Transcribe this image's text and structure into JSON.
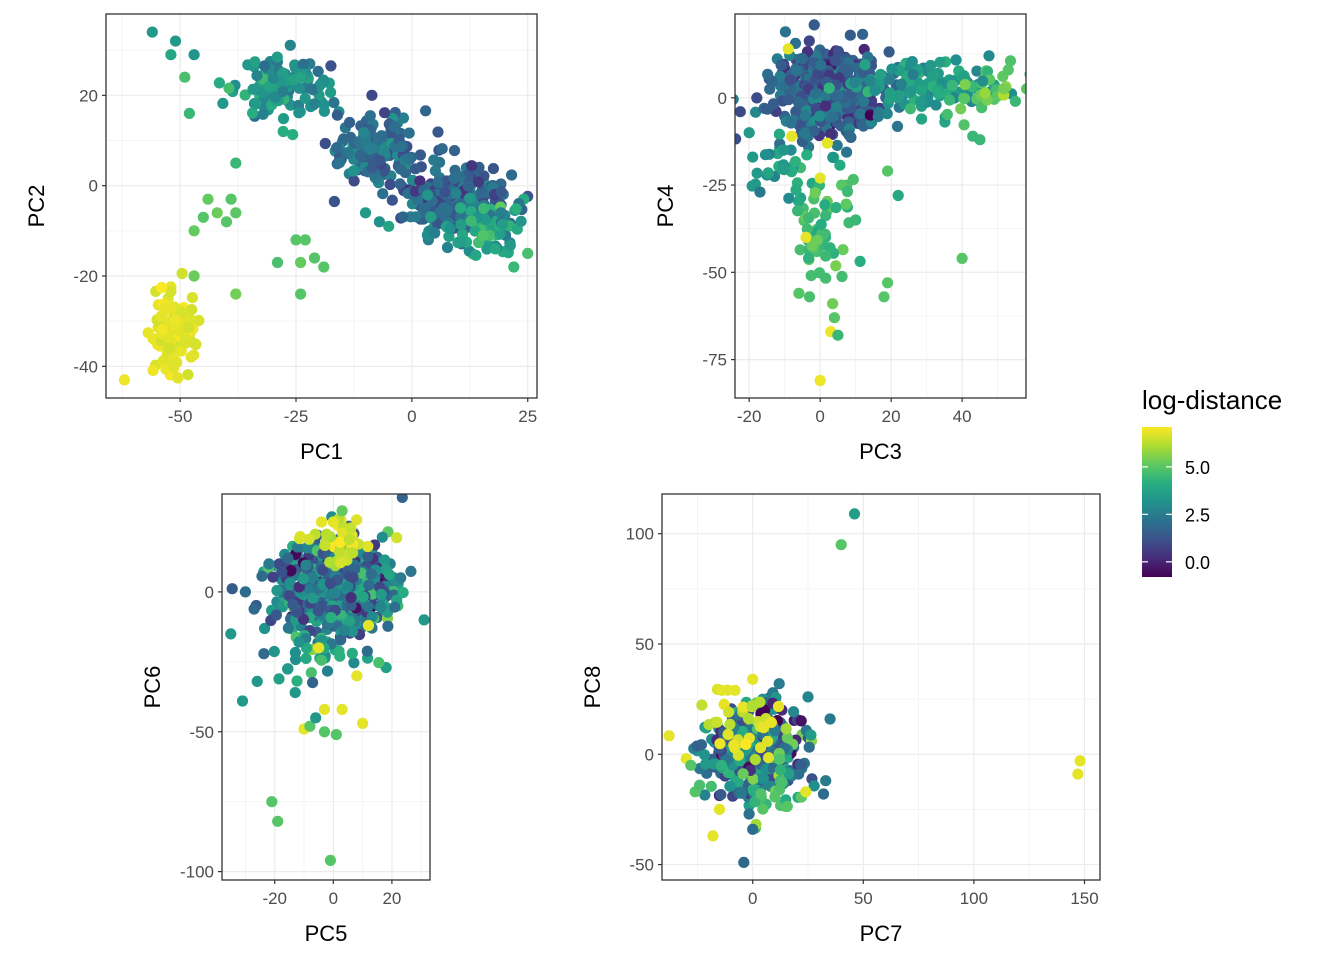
{
  "chart_data": [
    {
      "type": "scatter",
      "name": "pc1-pc2",
      "xlabel": "PC1",
      "ylabel": "PC2",
      "xlim": [
        -66,
        27
      ],
      "ylim": [
        -47,
        38
      ],
      "xticks": [
        -50,
        -25,
        0,
        25
      ],
      "yticks": [
        -40,
        -20,
        0,
        20
      ],
      "grid": true,
      "clusters": [
        {
          "cx": -28,
          "cy": 22,
          "sx": 5,
          "sy": 3.5,
          "n": 130,
          "c": 3.3,
          "cs": 0.6
        },
        {
          "cx": -8,
          "cy": 8,
          "sx": 5,
          "sy": 4,
          "n": 150,
          "c": 2.0,
          "cs": 0.6
        },
        {
          "cx": 10,
          "cy": -3,
          "sx": 6,
          "sy": 4,
          "n": 230,
          "c": 1.8,
          "cs": 0.7
        },
        {
          "cx": 16,
          "cy": -10,
          "sx": 4,
          "sy": 3,
          "n": 70,
          "c": 3.6,
          "cs": 0.7
        },
        {
          "cx": -51,
          "cy": -33,
          "sx": 2.5,
          "sy": 4,
          "n": 130,
          "c": 6.8,
          "cs": 0.15
        }
      ],
      "points": [
        [
          -56,
          34,
          3.5
        ],
        [
          -51,
          32,
          3.5
        ],
        [
          -49,
          24,
          4.8
        ],
        [
          -48,
          16,
          4.5
        ],
        [
          -38,
          5,
          4.5
        ],
        [
          -44,
          -3,
          5.2
        ],
        [
          -42,
          -6,
          5.3
        ],
        [
          -45,
          -7,
          5.0
        ],
        [
          -47,
          -10,
          5.2
        ],
        [
          -39,
          -3,
          5.0
        ],
        [
          -38,
          -6,
          5.1
        ],
        [
          -40,
          -8,
          5.0
        ],
        [
          -47,
          -20,
          5.3
        ],
        [
          -38,
          -24,
          5.4
        ],
        [
          -25,
          -12,
          5.0
        ],
        [
          -23,
          -12,
          5.0
        ],
        [
          -29,
          -17,
          4.8
        ],
        [
          -24,
          -17,
          5.2
        ],
        [
          -21,
          -16,
          5.0
        ],
        [
          -19,
          -18,
          5.0
        ],
        [
          -24,
          -24,
          5.0
        ],
        [
          -52,
          29,
          3.9
        ],
        [
          -62,
          -43,
          6.9
        ],
        [
          -47,
          29,
          3.3
        ],
        [
          22,
          -18,
          4.5
        ],
        [
          25,
          -15,
          4.8
        ],
        [
          18,
          -14,
          4.0
        ],
        [
          -10,
          -6,
          3.5
        ],
        [
          -7,
          -8,
          3.2
        ],
        [
          -5,
          -9,
          3.8
        ]
      ]
    },
    {
      "type": "scatter",
      "name": "pc3-pc4",
      "xlabel": "PC3",
      "ylabel": "PC4",
      "xlim": [
        -24,
        58
      ],
      "ylim": [
        -86,
        24
      ],
      "xticks": [
        -20,
        0,
        20,
        40
      ],
      "yticks": [
        -75,
        -50,
        -25,
        0
      ],
      "grid": true,
      "clusters": [
        {
          "cx": 2,
          "cy": 2,
          "sx": 8,
          "sy": 6,
          "n": 420,
          "c": 1.6,
          "cs": 0.8
        },
        {
          "cx": 30,
          "cy": 3,
          "sx": 10,
          "sy": 4,
          "n": 110,
          "c": 3.6,
          "cs": 0.6
        },
        {
          "cx": 48,
          "cy": 2,
          "sx": 4,
          "sy": 3,
          "n": 25,
          "c": 4.8,
          "cs": 0.5
        },
        {
          "cx": 0,
          "cy": -35,
          "sx": 5,
          "sy": 10,
          "n": 60,
          "c": 4.6,
          "cs": 0.5
        },
        {
          "cx": -10,
          "cy": -18,
          "sx": 5,
          "sy": 5,
          "n": 30,
          "c": 3.4,
          "cs": 0.5
        }
      ],
      "points": [
        [
          0,
          -81,
          6.9
        ],
        [
          3,
          -67,
          6.9
        ],
        [
          4,
          -63,
          5.0
        ],
        [
          5,
          -68,
          4.5
        ],
        [
          40,
          -46,
          5.0
        ],
        [
          18,
          -57,
          5.0
        ],
        [
          19,
          -53,
          5.0
        ],
        [
          22,
          -28,
          4.0
        ],
        [
          19,
          -21,
          5.0
        ],
        [
          -8,
          -11,
          6.8
        ],
        [
          2,
          -13,
          6.8
        ],
        [
          0,
          -23,
          6.8
        ],
        [
          -4,
          -40,
          6.8
        ],
        [
          43,
          -11,
          4.5
        ],
        [
          45,
          -12,
          4.5
        ],
        [
          55,
          -1,
          4.5
        ],
        [
          53,
          8,
          5.0
        ],
        [
          -20,
          -10,
          3.5
        ],
        [
          -19,
          -17,
          3.5
        ],
        [
          10,
          -35,
          4.5
        ],
        [
          -3,
          -57,
          4.8
        ],
        [
          -6,
          -56,
          5.0
        ],
        [
          -9,
          14,
          6.8
        ]
      ]
    },
    {
      "type": "scatter",
      "name": "pc5-pc6",
      "xlabel": "PC5",
      "ylabel": "PC6",
      "xlim": [
        -38,
        33
      ],
      "ylim": [
        -103,
        35
      ],
      "xticks": [
        -20,
        0,
        20
      ],
      "yticks": [
        -100,
        -50,
        0
      ],
      "grid": true,
      "clusters": [
        {
          "cx": 0,
          "cy": 1,
          "sx": 10,
          "sy": 8,
          "n": 600,
          "c": 2.3,
          "cs": 1.3
        },
        {
          "cx": 2,
          "cy": 18,
          "sx": 6,
          "sy": 4,
          "n": 40,
          "c": 6.6,
          "cs": 0.3
        },
        {
          "cx": -5,
          "cy": -22,
          "sx": 8,
          "sy": 6,
          "n": 40,
          "c": 3.4,
          "cs": 0.9
        }
      ],
      "points": [
        [
          -1,
          -96,
          5.0
        ],
        [
          -19,
          -82,
          5.0
        ],
        [
          -21,
          -75,
          5.0
        ],
        [
          -31,
          -39,
          3.5
        ],
        [
          -26,
          -32,
          3.4
        ],
        [
          -13,
          -36,
          3.4
        ],
        [
          -10,
          -49,
          6.8
        ],
        [
          -8,
          -48,
          5.0
        ],
        [
          -3,
          -42,
          6.8
        ],
        [
          3,
          -42,
          6.8
        ],
        [
          10,
          -47,
          6.8
        ],
        [
          -3,
          -50,
          5.0
        ],
        [
          1,
          -51,
          5.0
        ],
        [
          -6,
          -45,
          3.4
        ],
        [
          31,
          -10,
          3.5
        ],
        [
          -35,
          -15,
          3.5
        ],
        [
          3,
          29,
          5.2
        ],
        [
          -4,
          25,
          6.8
        ],
        [
          0,
          25,
          6.8
        ],
        [
          8,
          -30,
          6.8
        ],
        [
          -5,
          -20,
          6.8
        ],
        [
          12,
          -12,
          6.8
        ],
        [
          -30,
          0,
          2.0
        ],
        [
          -22,
          10,
          2.5
        ],
        [
          23,
          5,
          2.5
        ]
      ]
    },
    {
      "type": "scatter",
      "name": "pc7-pc8",
      "xlabel": "PC7",
      "ylabel": "PC8",
      "xlim": [
        -41,
        157
      ],
      "ylim": [
        -57,
        118
      ],
      "xticks": [
        0,
        50,
        100,
        150
      ],
      "yticks": [
        -50,
        0,
        50,
        100
      ],
      "grid": true,
      "clusters": [
        {
          "cx": 0,
          "cy": 0,
          "sx": 11,
          "sy": 10,
          "n": 420,
          "c": 2.3,
          "cs": 1.4
        },
        {
          "cx": -6,
          "cy": 12,
          "sx": 10,
          "sy": 10,
          "n": 35,
          "c": 6.6,
          "cs": 0.3
        },
        {
          "cx": 5,
          "cy": -15,
          "sx": 8,
          "sy": 7,
          "n": 25,
          "c": 5.0,
          "cs": 0.5
        }
      ],
      "points": [
        [
          46,
          109,
          3.6
        ],
        [
          40,
          95,
          5.0
        ],
        [
          148,
          -3,
          6.8
        ],
        [
          147,
          -9,
          6.8
        ],
        [
          -4,
          -49,
          1.9
        ],
        [
          0,
          -34,
          2.0
        ],
        [
          33,
          -12,
          2.5
        ],
        [
          32,
          -18,
          2.0
        ],
        [
          -30,
          -2,
          6.8
        ],
        [
          -28,
          -5,
          5.0
        ],
        [
          -26,
          -17,
          5.0
        ],
        [
          -18,
          -37,
          6.8
        ],
        [
          -15,
          -25,
          6.8
        ],
        [
          0,
          34,
          6.8
        ],
        [
          -14,
          29,
          6.8
        ],
        [
          -8,
          29,
          6.8
        ],
        [
          25,
          26,
          2.8
        ],
        [
          12,
          32,
          2.5
        ],
        [
          24,
          -17,
          6.8
        ],
        [
          -24,
          -14,
          4.8
        ]
      ]
    }
  ],
  "legend": {
    "title": "log-distance",
    "position": "right",
    "min": -0.8,
    "max": 7.1,
    "ticks": [
      "0.0",
      "2.5",
      "5.0"
    ],
    "tick_values": [
      0,
      2.5,
      5
    ],
    "colormap": "viridis"
  }
}
